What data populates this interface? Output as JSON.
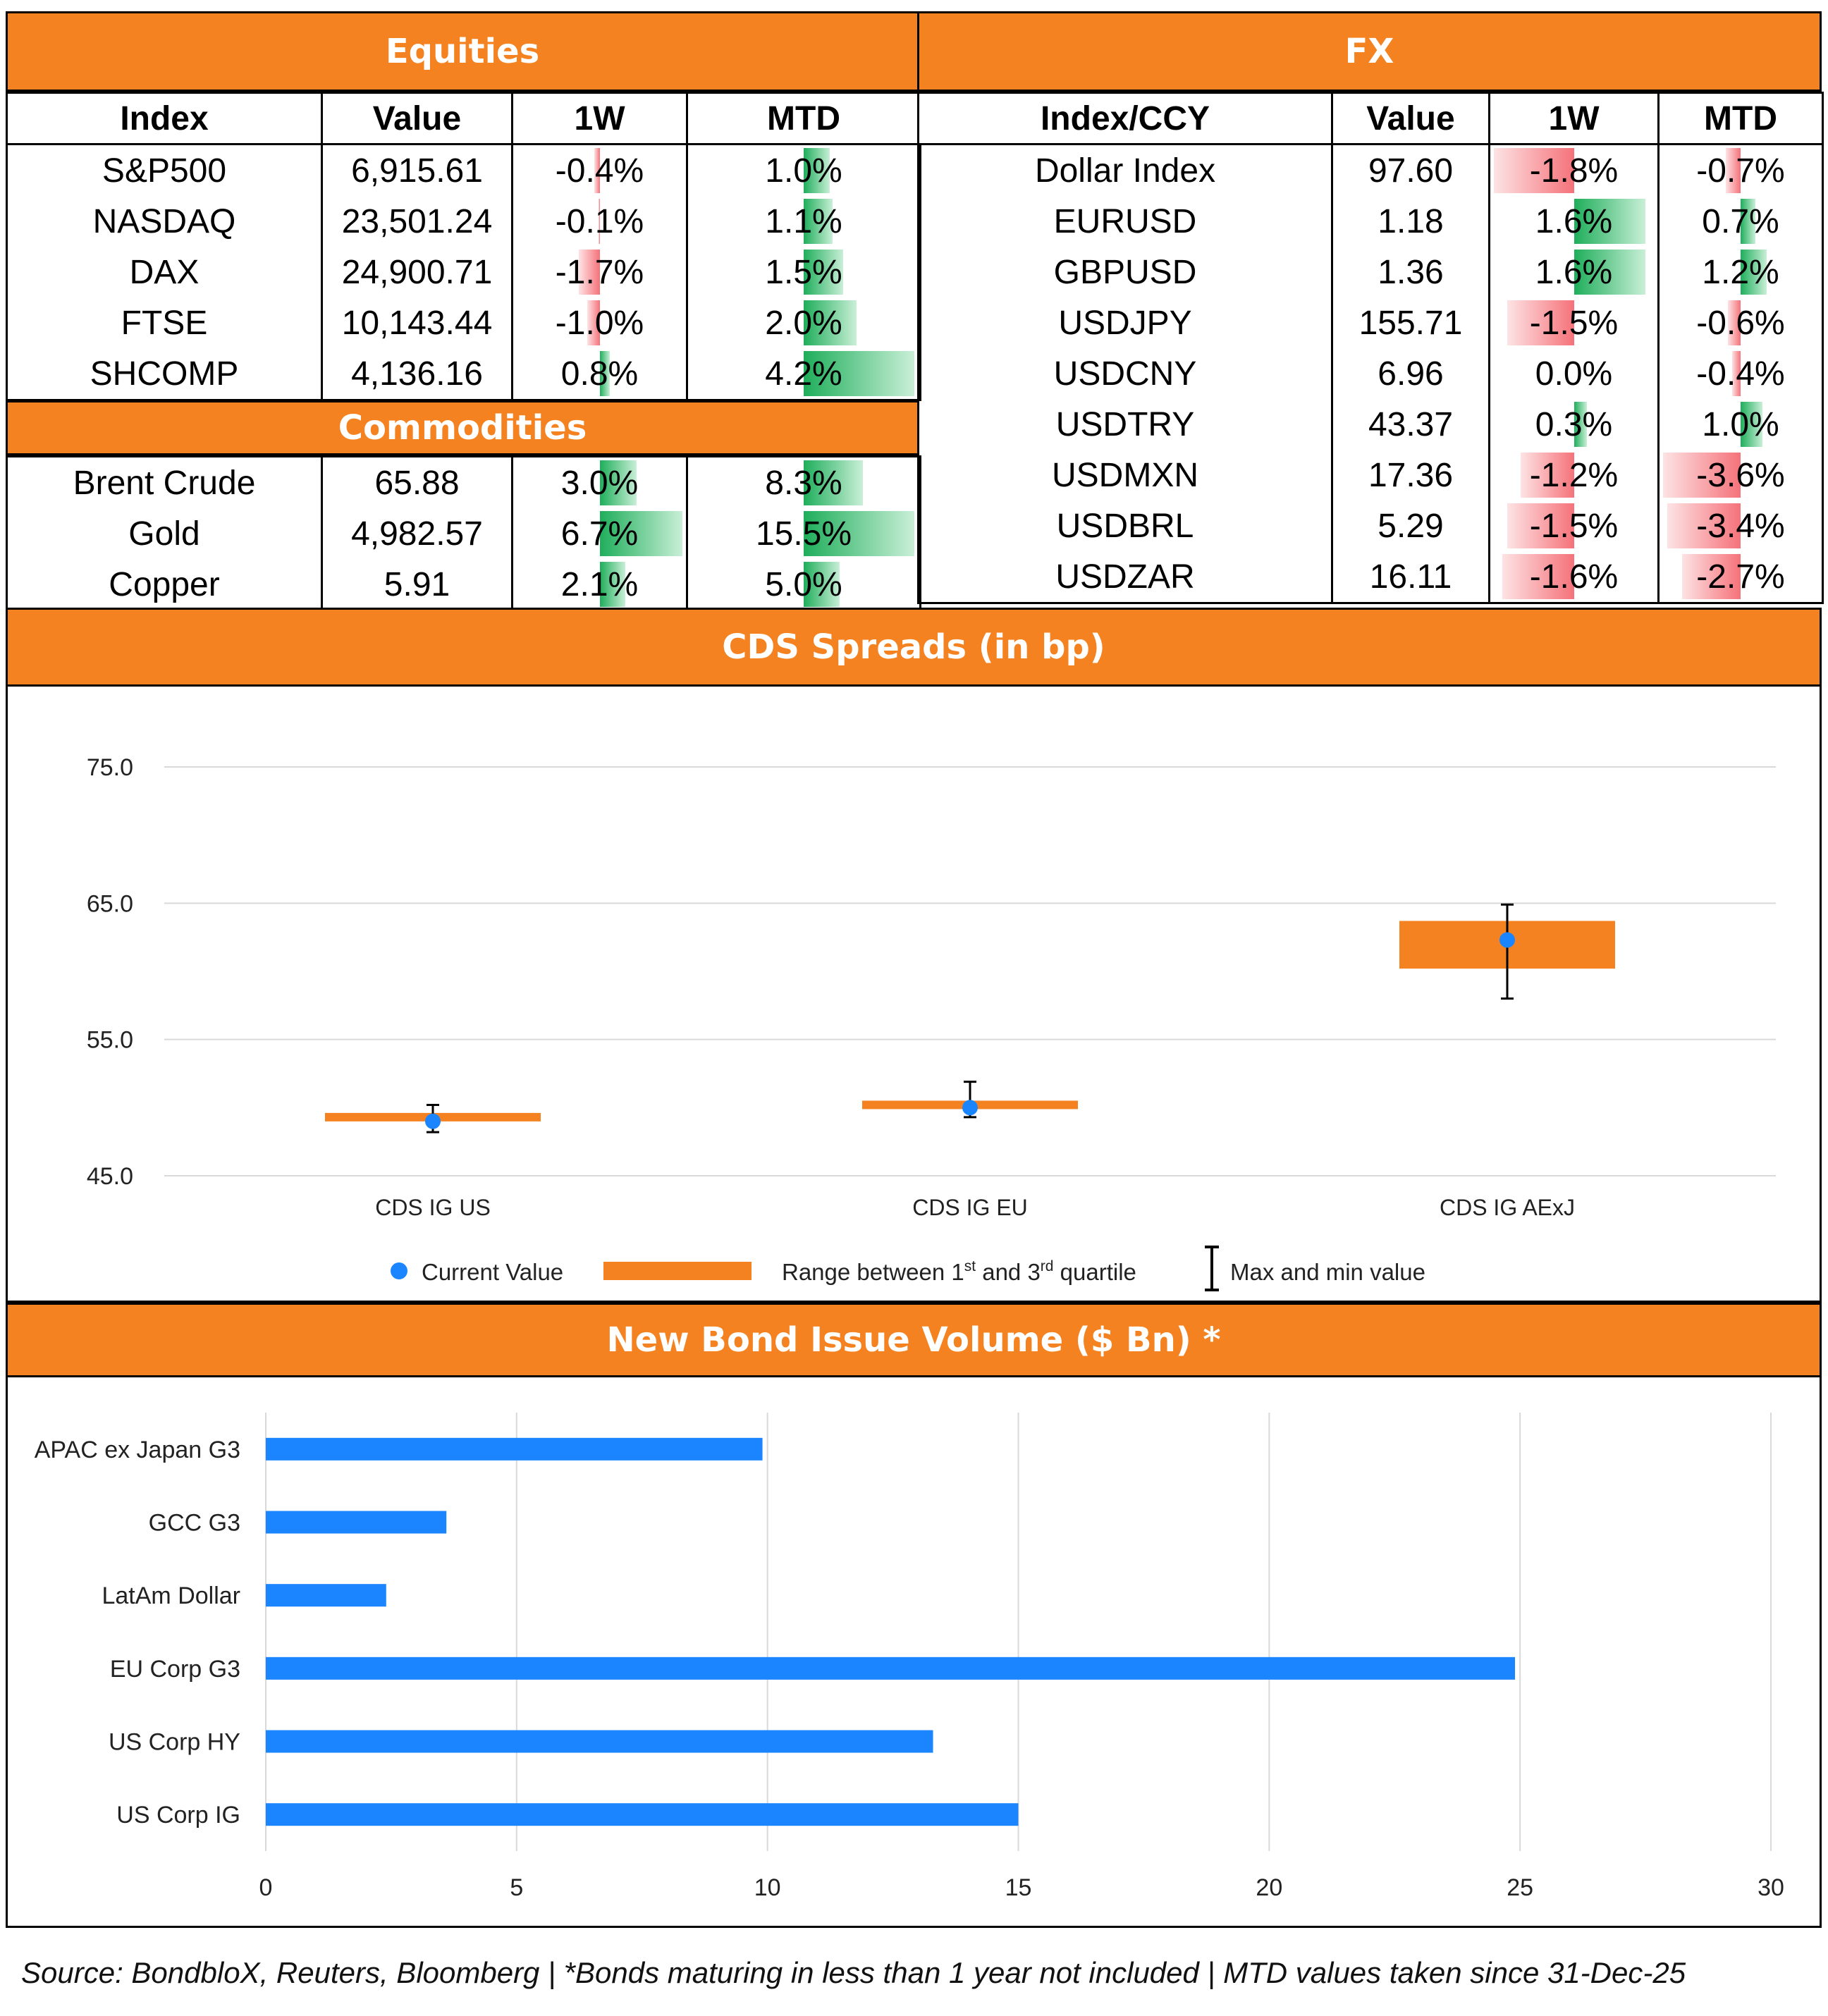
{
  "equities": {
    "title": "Equities",
    "columns": [
      "Index",
      "Value",
      "1W",
      "MTD"
    ],
    "rows": [
      {
        "name": "S&P500",
        "value": "6,915.61",
        "w1": "-0.4%",
        "mtd": "1.0%",
        "w1_num": -0.4,
        "mtd_num": 1.0
      },
      {
        "name": "NASDAQ",
        "value": "23,501.24",
        "w1": "-0.1%",
        "mtd": "1.1%",
        "w1_num": -0.1,
        "mtd_num": 1.1
      },
      {
        "name": "DAX",
        "value": "24,900.71",
        "w1": "-1.7%",
        "mtd": "1.5%",
        "w1_num": -1.7,
        "mtd_num": 1.5
      },
      {
        "name": "FTSE",
        "value": "10,143.44",
        "w1": "-1.0%",
        "mtd": "2.0%",
        "w1_num": -1.0,
        "mtd_num": 2.0
      },
      {
        "name": "SHCOMP",
        "value": "4,136.16",
        "w1": "0.8%",
        "mtd": "4.2%",
        "w1_num": 0.8,
        "mtd_num": 4.2
      }
    ]
  },
  "commodities": {
    "title": "Commodities",
    "rows": [
      {
        "name": "Brent Crude",
        "value": "65.88",
        "w1": "3.0%",
        "mtd": "8.3%",
        "w1_num": 3.0,
        "mtd_num": 8.3
      },
      {
        "name": "Gold",
        "value": "4,982.57",
        "w1": "6.7%",
        "mtd": "15.5%",
        "w1_num": 6.7,
        "mtd_num": 15.5
      },
      {
        "name": "Copper",
        "value": "5.91",
        "w1": "2.1%",
        "mtd": "5.0%",
        "w1_num": 2.1,
        "mtd_num": 5.0
      }
    ]
  },
  "fx": {
    "title": "FX",
    "columns": [
      "Index/CCY",
      "Value",
      "1W",
      "MTD"
    ],
    "rows": [
      {
        "name": "Dollar Index",
        "value": "97.60",
        "w1": "-1.8%",
        "mtd": "-0.7%",
        "w1_num": -1.8,
        "mtd_num": -0.7
      },
      {
        "name": "EURUSD",
        "value": "1.18",
        "w1": "1.6%",
        "mtd": "0.7%",
        "w1_num": 1.6,
        "mtd_num": 0.7
      },
      {
        "name": "GBPUSD",
        "value": "1.36",
        "w1": "1.6%",
        "mtd": "1.2%",
        "w1_num": 1.6,
        "mtd_num": 1.2
      },
      {
        "name": "USDJPY",
        "value": "155.71",
        "w1": "-1.5%",
        "mtd": "-0.6%",
        "w1_num": -1.5,
        "mtd_num": -0.6
      },
      {
        "name": "USDCNY",
        "value": "6.96",
        "w1": "0.0%",
        "mtd": "-0.4%",
        "w1_num": 0.0,
        "mtd_num": -0.4
      },
      {
        "name": "USDTRY",
        "value": "43.37",
        "w1": "0.3%",
        "mtd": "1.0%",
        "w1_num": 0.3,
        "mtd_num": 1.0
      },
      {
        "name": "USDMXN",
        "value": "17.36",
        "w1": "-1.2%",
        "mtd": "-3.6%",
        "w1_num": -1.2,
        "mtd_num": -3.6
      },
      {
        "name": "USDBRL",
        "value": "5.29",
        "w1": "-1.5%",
        "mtd": "-3.4%",
        "w1_num": -1.5,
        "mtd_num": -3.4
      },
      {
        "name": "USDZAR",
        "value": "16.11",
        "w1": "-1.6%",
        "mtd": "-2.7%",
        "w1_num": -1.6,
        "mtd_num": -2.7
      }
    ]
  },
  "colors": {
    "header": "#F58220",
    "bar_blue": "#1A85FF",
    "up_green": "#1FAE5B",
    "down_red": "#F5727A"
  },
  "chart_data": [
    {
      "type": "box",
      "title": "CDS Spreads (in bp)",
      "categories": [
        "CDS IG US",
        "CDS IG EU",
        "CDS IG AExJ"
      ],
      "yticks": [
        "75.0",
        "65.0",
        "55.0",
        "45.0"
      ],
      "ylim": [
        45,
        75
      ],
      "series": [
        {
          "name": "Current Value",
          "values": [
            49.0,
            50.0,
            62.3
          ]
        },
        {
          "name": "q1",
          "values": [
            49.0,
            49.9,
            60.2
          ]
        },
        {
          "name": "q3",
          "values": [
            49.6,
            50.5,
            63.7
          ]
        },
        {
          "name": "min",
          "values": [
            48.2,
            49.3,
            58.0
          ]
        },
        {
          "name": "max",
          "values": [
            50.2,
            51.9,
            64.9
          ]
        }
      ],
      "legend": {
        "current": "Current Value",
        "range_pre": "Range between 1",
        "range_sup1": "st",
        "range_mid": " and 3",
        "range_sup2": "rd",
        "range_post": " quartile",
        "maxmin": "Max and min value"
      }
    },
    {
      "type": "bar",
      "orientation": "horizontal",
      "title": "New Bond Issue Volume ($ Bn) *",
      "categories": [
        "APAC ex Japan G3",
        "GCC G3",
        "LatAm Dollar",
        "EU Corp G3",
        "US Corp HY",
        "US Corp IG"
      ],
      "values": [
        9.9,
        3.6,
        2.4,
        24.9,
        13.3,
        15.0
      ],
      "xticks": [
        "0",
        "5",
        "10",
        "15",
        "20",
        "25",
        "30"
      ],
      "xlim": [
        0,
        30
      ]
    }
  ],
  "footer": "Source: BondbloX, Reuters, Bloomberg | *Bonds maturing in less than 1 year not included | MTD values taken since 31-Dec-25"
}
